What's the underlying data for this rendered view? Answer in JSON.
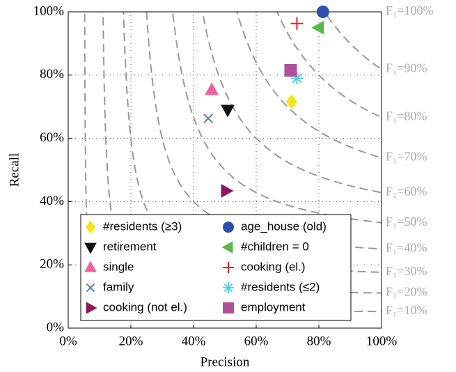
{
  "chart_data": {
    "type": "scatter",
    "xlabel": "Precision",
    "ylabel": "Recall",
    "xlim": [
      0,
      100
    ],
    "ylim": [
      0,
      100
    ],
    "xticks": [
      {
        "value": 0,
        "label": "0%"
      },
      {
        "value": 20,
        "label": "20%"
      },
      {
        "value": 40,
        "label": "40%"
      },
      {
        "value": 60,
        "label": "60%"
      },
      {
        "value": 80,
        "label": "80%"
      },
      {
        "value": 100,
        "label": "100%"
      }
    ],
    "yticks": [
      {
        "value": 0,
        "label": "0%"
      },
      {
        "value": 20,
        "label": "20%"
      },
      {
        "value": 40,
        "label": "40%"
      },
      {
        "value": 60,
        "label": "60%"
      },
      {
        "value": 80,
        "label": "80%"
      },
      {
        "value": 100,
        "label": "100%"
      }
    ],
    "grid": true,
    "legend": "lower left",
    "f1_contours": [
      {
        "value": 100,
        "label": "F₁=100%"
      },
      {
        "value": 90,
        "label": "F₁=90%"
      },
      {
        "value": 80,
        "label": "F₁=80%"
      },
      {
        "value": 70,
        "label": "F₁=70%"
      },
      {
        "value": 60,
        "label": "F₁=60%"
      },
      {
        "value": 50,
        "label": "F₁=50%"
      },
      {
        "value": 40,
        "label": "F₁=40%"
      },
      {
        "value": 30,
        "label": "F₁=30%"
      },
      {
        "value": 20,
        "label": "F₁=20%"
      },
      {
        "value": 10,
        "label": "F₁=10%"
      }
    ],
    "series": [
      {
        "name": "#residents (≥3)",
        "color": "#f5e61a",
        "marker": "diamond",
        "x": [
          71.3
        ],
        "values": [
          71.6
        ]
      },
      {
        "name": "retirement",
        "color": "#111111",
        "marker": "triangle-down",
        "x": [
          50.9
        ],
        "values": [
          69
        ]
      },
      {
        "name": "single",
        "color": "#f0609a",
        "marker": "triangle-up",
        "x": [
          45.8
        ],
        "values": [
          75.3
        ]
      },
      {
        "name": "family",
        "color": "#5a7fc0",
        "marker": "x",
        "x": [
          44.7
        ],
        "values": [
          66.3
        ]
      },
      {
        "name": "cooking (not el.)",
        "color": "#8b1a5e",
        "marker": "triangle-right",
        "x": [
          50.4
        ],
        "values": [
          43.4
        ]
      },
      {
        "name": "age_house (old)",
        "color": "#2d4fb0",
        "marker": "circle",
        "x": [
          81.3
        ],
        "values": [
          100
        ]
      },
      {
        "name": "#children = 0",
        "color": "#5ab84a",
        "marker": "triangle-left",
        "x": [
          80
        ],
        "values": [
          95
        ]
      },
      {
        "name": "cooking (el.)",
        "color": "#e8202a",
        "marker": "plus",
        "x": [
          73
        ],
        "values": [
          96.3
        ]
      },
      {
        "name": "#residents (≤2)",
        "color": "#50d0e0",
        "marker": "asterisk",
        "x": [
          73
        ],
        "values": [
          79
        ]
      },
      {
        "name": "employment",
        "color": "#b0509a",
        "marker": "square",
        "x": [
          71
        ],
        "values": [
          81.5
        ]
      }
    ]
  }
}
